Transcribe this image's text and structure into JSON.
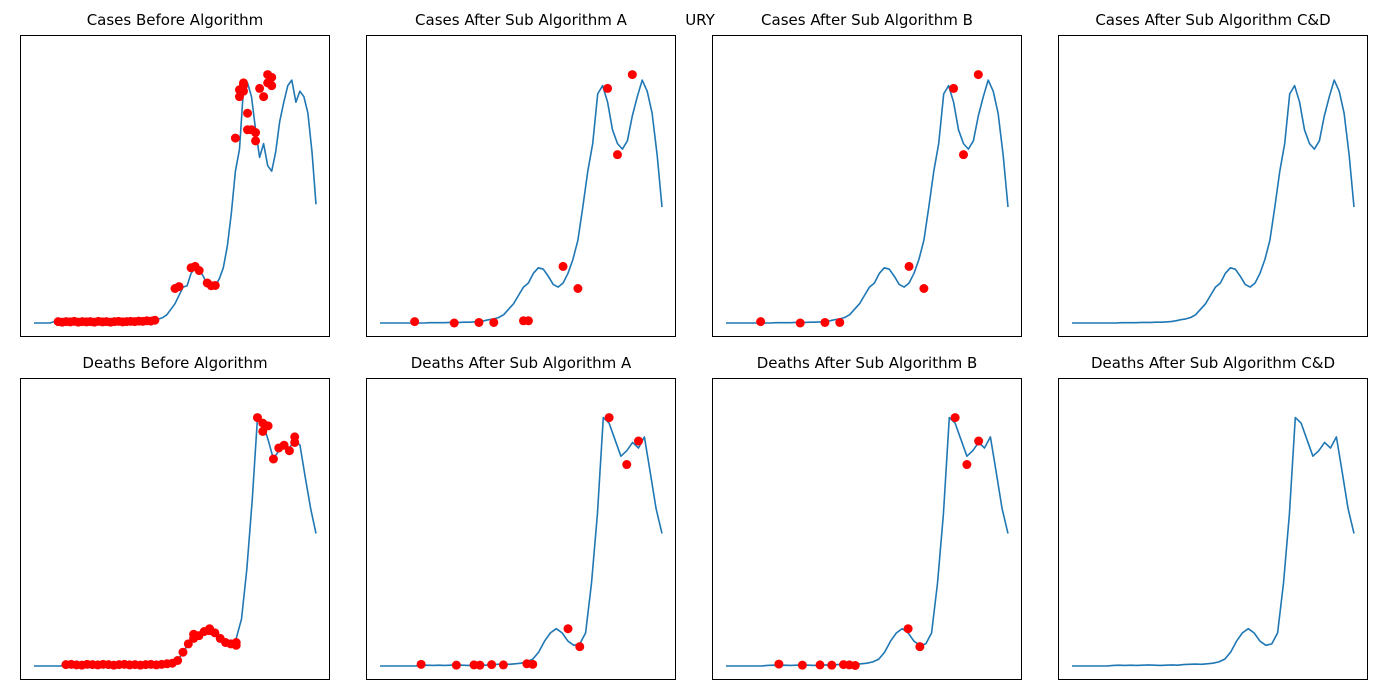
{
  "figure": {
    "suptitle": "URY"
  },
  "chart_data": [
    {
      "type": "line",
      "title": "Cases Before Algorithm",
      "xlabel": "",
      "ylabel": "",
      "grid": false,
      "ylim": [
        0,
        100
      ],
      "series": [
        {
          "values": [
            0,
            0,
            0,
            0,
            0,
            0.5,
            0.3,
            0.5,
            0.4,
            0.6,
            0.3,
            0.5,
            0.4,
            0.5,
            0.3,
            0.6,
            0.4,
            0.5,
            0.3,
            0.5,
            0.6,
            0.4,
            0.5,
            0.6,
            0.5,
            0.7,
            0.6,
            0.8,
            0.7,
            1,
            1.2,
            1.5,
            2,
            3,
            5,
            7,
            10,
            13,
            13.5,
            18,
            20,
            19.5,
            17,
            14,
            13,
            13.5,
            16,
            20,
            28,
            40,
            55,
            63,
            85,
            87,
            82,
            70,
            60,
            65,
            57,
            55,
            62,
            73,
            80,
            86,
            88,
            80,
            84,
            82,
            76,
            62,
            43
          ]
        }
      ],
      "outliers": [
        {
          "x": 6,
          "y": 0.5
        },
        {
          "x": 7,
          "y": 0.3
        },
        {
          "x": 8,
          "y": 0.5
        },
        {
          "x": 9,
          "y": 0.4
        },
        {
          "x": 10,
          "y": 0.6
        },
        {
          "x": 11,
          "y": 0.3
        },
        {
          "x": 12,
          "y": 0.5
        },
        {
          "x": 13,
          "y": 0.4
        },
        {
          "x": 14,
          "y": 0.5
        },
        {
          "x": 15,
          "y": 0.3
        },
        {
          "x": 16,
          "y": 0.6
        },
        {
          "x": 17,
          "y": 0.4
        },
        {
          "x": 18,
          "y": 0.5
        },
        {
          "x": 19,
          "y": 0.3
        },
        {
          "x": 20,
          "y": 0.5
        },
        {
          "x": 21,
          "y": 0.6
        },
        {
          "x": 22,
          "y": 0.4
        },
        {
          "x": 23,
          "y": 0.5
        },
        {
          "x": 24,
          "y": 0.6
        },
        {
          "x": 25,
          "y": 0.5
        },
        {
          "x": 26,
          "y": 0.7
        },
        {
          "x": 27,
          "y": 0.6
        },
        {
          "x": 28,
          "y": 0.8
        },
        {
          "x": 29,
          "y": 0.7
        },
        {
          "x": 30,
          "y": 1
        },
        {
          "x": 35,
          "y": 12.5
        },
        {
          "x": 36,
          "y": 13.2
        },
        {
          "x": 39,
          "y": 20
        },
        {
          "x": 40,
          "y": 20.5
        },
        {
          "x": 41,
          "y": 19
        },
        {
          "x": 43,
          "y": 14.5
        },
        {
          "x": 44,
          "y": 13.5
        },
        {
          "x": 45,
          "y": 13.6
        },
        {
          "x": 50,
          "y": 67
        },
        {
          "x": 51,
          "y": 82
        },
        {
          "x": 51,
          "y": 84.5
        },
        {
          "x": 52,
          "y": 84
        },
        {
          "x": 52,
          "y": 86
        },
        {
          "x": 52,
          "y": 87
        },
        {
          "x": 53,
          "y": 70
        },
        {
          "x": 53,
          "y": 76
        },
        {
          "x": 54,
          "y": 70
        },
        {
          "x": 55,
          "y": 66
        },
        {
          "x": 55,
          "y": 69
        },
        {
          "x": 56,
          "y": 85
        },
        {
          "x": 57,
          "y": 82
        },
        {
          "x": 58,
          "y": 90
        },
        {
          "x": 58,
          "y": 87
        },
        {
          "x": 59,
          "y": 89
        },
        {
          "x": 59,
          "y": 86
        }
      ]
    },
    {
      "type": "line",
      "title": "Cases After Sub Algorithm A",
      "xlabel": "",
      "ylabel": "",
      "grid": false,
      "ylim": [
        0,
        100
      ],
      "series": [
        {
          "values": [
            0,
            0,
            0,
            0,
            0,
            0,
            0,
            0,
            0,
            0,
            0.1,
            0.1,
            0.1,
            0.1,
            0.2,
            0.2,
            0.2,
            0.3,
            0.3,
            0.4,
            0.5,
            0.8,
            1.2,
            1.5,
            2,
            3,
            5,
            7,
            10,
            13,
            14.5,
            18,
            20,
            19.5,
            17,
            14,
            13,
            14.5,
            18,
            23,
            30,
            42,
            55,
            65,
            83,
            86,
            80,
            70,
            65,
            63,
            66,
            75,
            82,
            88,
            84,
            76,
            61,
            42
          ]
        }
      ],
      "outliers": [
        {
          "x": 7,
          "y": 0.5
        },
        {
          "x": 15,
          "y": 0
        },
        {
          "x": 20,
          "y": 0.2
        },
        {
          "x": 23,
          "y": 0.2
        },
        {
          "x": 29,
          "y": 0.8
        },
        {
          "x": 30,
          "y": 0.8
        },
        {
          "x": 37,
          "y": 20.5
        },
        {
          "x": 40,
          "y": 12.5
        },
        {
          "x": 46,
          "y": 85
        },
        {
          "x": 48,
          "y": 61
        },
        {
          "x": 51,
          "y": 90
        }
      ]
    },
    {
      "type": "line",
      "title": "Cases After Sub Algorithm B",
      "xlabel": "",
      "ylabel": "",
      "grid": false,
      "ylim": [
        0,
        100
      ],
      "series": [
        {
          "values": [
            0,
            0,
            0,
            0,
            0,
            0,
            0,
            0,
            0,
            0,
            0.1,
            0.1,
            0.1,
            0.1,
            0.2,
            0.2,
            0.2,
            0.3,
            0.3,
            0.4,
            0.5,
            0.8,
            1.2,
            1.5,
            2,
            3,
            5,
            7,
            10,
            13,
            14.5,
            18,
            20,
            19.5,
            17,
            14,
            13,
            14.5,
            18,
            23,
            30,
            42,
            55,
            65,
            83,
            86,
            80,
            70,
            65,
            63,
            66,
            75,
            82,
            88,
            84,
            76,
            61,
            42
          ]
        }
      ],
      "outliers": [
        {
          "x": 7,
          "y": 0.5
        },
        {
          "x": 15,
          "y": 0
        },
        {
          "x": 20,
          "y": 0.2
        },
        {
          "x": 23,
          "y": 0.2
        },
        {
          "x": 37,
          "y": 20.5
        },
        {
          "x": 40,
          "y": 12.5
        },
        {
          "x": 46,
          "y": 85
        },
        {
          "x": 48,
          "y": 61
        },
        {
          "x": 51,
          "y": 90
        }
      ]
    },
    {
      "type": "line",
      "title": "Cases After Sub Algorithm C&D",
      "xlabel": "",
      "ylabel": "",
      "grid": false,
      "ylim": [
        0,
        100
      ],
      "series": [
        {
          "values": [
            0,
            0,
            0,
            0,
            0,
            0,
            0,
            0,
            0,
            0,
            0.1,
            0.1,
            0.1,
            0.1,
            0.2,
            0.2,
            0.2,
            0.3,
            0.3,
            0.4,
            0.5,
            0.8,
            1.2,
            1.5,
            2,
            3,
            5,
            7,
            10,
            13,
            14.5,
            18,
            20,
            19.5,
            17,
            14,
            13,
            14.5,
            18,
            23,
            30,
            42,
            55,
            65,
            83,
            86,
            80,
            70,
            65,
            63,
            66,
            75,
            82,
            88,
            84,
            76,
            61,
            42
          ]
        }
      ],
      "outliers": []
    },
    {
      "type": "line",
      "title": "Deaths Before Algorithm",
      "xlabel": "",
      "ylabel": "",
      "grid": false,
      "ylim": [
        0,
        100
      ],
      "series": [
        {
          "values": [
            0,
            0,
            0,
            0,
            0,
            0,
            0.5,
            0.6,
            0.4,
            0.3,
            0.6,
            0.5,
            0.4,
            0.6,
            0.5,
            0.3,
            0.5,
            0.6,
            0.4,
            0.5,
            0.3,
            0.5,
            0.6,
            0.4,
            0.6,
            0.8,
            1,
            2,
            5,
            8,
            10,
            11,
            13,
            13.5,
            12,
            10,
            8.5,
            8,
            10,
            17,
            35,
            60,
            90,
            88,
            82,
            75,
            78,
            80,
            79,
            82,
            80,
            68,
            57,
            48
          ]
        }
      ],
      "outliers": [
        {
          "x": 6,
          "y": 0.5
        },
        {
          "x": 7,
          "y": 0.6
        },
        {
          "x": 8,
          "y": 0.4
        },
        {
          "x": 9,
          "y": 0.3
        },
        {
          "x": 10,
          "y": 0.6
        },
        {
          "x": 11,
          "y": 0.5
        },
        {
          "x": 12,
          "y": 0.4
        },
        {
          "x": 13,
          "y": 0.6
        },
        {
          "x": 14,
          "y": 0.5
        },
        {
          "x": 15,
          "y": 0.3
        },
        {
          "x": 16,
          "y": 0.5
        },
        {
          "x": 17,
          "y": 0.6
        },
        {
          "x": 18,
          "y": 0.4
        },
        {
          "x": 19,
          "y": 0.5
        },
        {
          "x": 20,
          "y": 0.3
        },
        {
          "x": 21,
          "y": 0.5
        },
        {
          "x": 22,
          "y": 0.6
        },
        {
          "x": 23,
          "y": 0.4
        },
        {
          "x": 24,
          "y": 0.6
        },
        {
          "x": 25,
          "y": 0.8
        },
        {
          "x": 26,
          "y": 1
        },
        {
          "x": 27,
          "y": 2
        },
        {
          "x": 28,
          "y": 5
        },
        {
          "x": 29,
          "y": 8
        },
        {
          "x": 30,
          "y": 10
        },
        {
          "x": 30,
          "y": 11.5
        },
        {
          "x": 31,
          "y": 11
        },
        {
          "x": 32,
          "y": 12.5
        },
        {
          "x": 33,
          "y": 13.5
        },
        {
          "x": 33,
          "y": 12.8
        },
        {
          "x": 34,
          "y": 12
        },
        {
          "x": 35,
          "y": 10
        },
        {
          "x": 36,
          "y": 8.5
        },
        {
          "x": 37,
          "y": 8
        },
        {
          "x": 38,
          "y": 7.5
        },
        {
          "x": 38,
          "y": 8.5
        },
        {
          "x": 42,
          "y": 90
        },
        {
          "x": 43,
          "y": 88
        },
        {
          "x": 43,
          "y": 85
        },
        {
          "x": 44,
          "y": 87
        },
        {
          "x": 45,
          "y": 75
        },
        {
          "x": 46,
          "y": 79
        },
        {
          "x": 47,
          "y": 80
        },
        {
          "x": 48,
          "y": 78
        },
        {
          "x": 49,
          "y": 81
        },
        {
          "x": 49,
          "y": 83
        }
      ]
    },
    {
      "type": "line",
      "title": "Deaths After Sub Algorithm A",
      "xlabel": "",
      "ylabel": "",
      "grid": false,
      "ylim": [
        0,
        100
      ],
      "series": [
        {
          "values": [
            0,
            0,
            0,
            0,
            0,
            0,
            0,
            0.2,
            0.3,
            0.2,
            0.3,
            0.2,
            0.3,
            0.4,
            0.3,
            0.2,
            0.3,
            0.4,
            0.3,
            0.5,
            0.6,
            0.7,
            0.6,
            0.8,
            1,
            1.5,
            2.5,
            5,
            9,
            12,
            13.5,
            12,
            9,
            7.5,
            8,
            12,
            30,
            55,
            90,
            88,
            82,
            76,
            78,
            81,
            79,
            83,
            70,
            57,
            48
          ]
        }
      ],
      "outliers": [
        {
          "x": 7,
          "y": 0.6
        },
        {
          "x": 13,
          "y": 0.3
        },
        {
          "x": 16,
          "y": 0.4
        },
        {
          "x": 17,
          "y": 0.3
        },
        {
          "x": 19,
          "y": 0.5
        },
        {
          "x": 21,
          "y": 0.4
        },
        {
          "x": 25,
          "y": 0.8
        },
        {
          "x": 26,
          "y": 0.6
        },
        {
          "x": 32,
          "y": 13.5
        },
        {
          "x": 34,
          "y": 7
        },
        {
          "x": 39,
          "y": 90
        },
        {
          "x": 42,
          "y": 73
        },
        {
          "x": 44,
          "y": 81.5
        }
      ]
    },
    {
      "type": "line",
      "title": "Deaths After Sub Algorithm B",
      "xlabel": "",
      "ylabel": "",
      "grid": false,
      "ylim": [
        0,
        100
      ],
      "series": [
        {
          "values": [
            0,
            0,
            0,
            0,
            0,
            0,
            0,
            0.2,
            0.3,
            0.2,
            0.3,
            0.2,
            0.3,
            0.4,
            0.3,
            0.2,
            0.3,
            0.4,
            0.3,
            0.5,
            0.6,
            0.7,
            0.6,
            0.8,
            1,
            1.5,
            2.5,
            5,
            9,
            12,
            13.5,
            12,
            9,
            7.5,
            8,
            12,
            30,
            55,
            90,
            88,
            82,
            76,
            78,
            81,
            79,
            83,
            70,
            57,
            48
          ]
        }
      ],
      "outliers": [
        {
          "x": 9,
          "y": 0.7
        },
        {
          "x": 13,
          "y": 0.3
        },
        {
          "x": 16,
          "y": 0.4
        },
        {
          "x": 18,
          "y": 0.3
        },
        {
          "x": 20,
          "y": 0.5
        },
        {
          "x": 21,
          "y": 0.4
        },
        {
          "x": 22,
          "y": 0.2
        },
        {
          "x": 31,
          "y": 13.5
        },
        {
          "x": 33,
          "y": 7
        },
        {
          "x": 39,
          "y": 90
        },
        {
          "x": 41,
          "y": 73
        },
        {
          "x": 43,
          "y": 81.5
        }
      ]
    },
    {
      "type": "line",
      "title": "Deaths After Sub Algorithm C&D",
      "xlabel": "",
      "ylabel": "",
      "grid": false,
      "ylim": [
        0,
        100
      ],
      "series": [
        {
          "values": [
            0,
            0,
            0,
            0,
            0,
            0,
            0,
            0.2,
            0.3,
            0.2,
            0.3,
            0.2,
            0.3,
            0.4,
            0.3,
            0.2,
            0.3,
            0.4,
            0.3,
            0.5,
            0.6,
            0.7,
            0.6,
            0.8,
            1,
            1.5,
            2.5,
            5,
            9,
            12,
            13.5,
            12,
            9,
            7.5,
            8,
            12,
            30,
            55,
            90,
            88,
            82,
            76,
            78,
            81,
            79,
            83,
            70,
            57,
            48
          ]
        }
      ],
      "outliers": []
    }
  ],
  "colors": {
    "line": "#1f77b4",
    "outlier": "#ff0000",
    "axes": "#000000"
  }
}
